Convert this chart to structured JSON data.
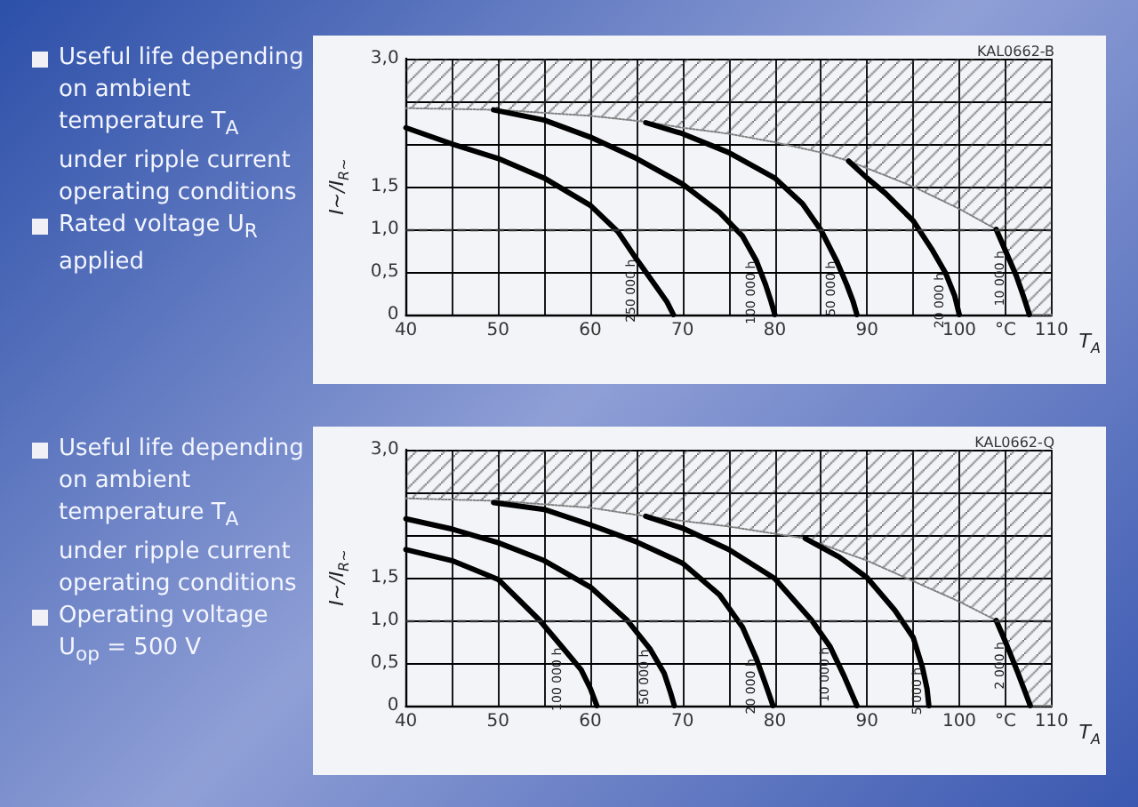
{
  "chart_data": [
    {
      "type": "line",
      "subtitle": "KAL0662-B",
      "xlabel": "T$_{A}$",
      "ylabel": "I~/I$_{R~}$",
      "annotations": [
        "Useful life depending on ambient temperature T$_{A}$ under ripple current operating conditions",
        "Rated voltage U$_{R}$ applied"
      ],
      "xlim": [
        40,
        110
      ],
      "xticks": [
        40,
        {
          "value": 45,
          "label": null
        },
        50,
        {
          "value": 55,
          "label": null
        },
        60,
        {
          "value": 65,
          "label": null
        },
        70,
        {
          "value": 75,
          "label": null
        },
        80,
        {
          "value": 85,
          "label": null
        },
        90,
        {
          "value": 95,
          "label": null
        },
        100,
        {
          "value": 105,
          "label": "°C"
        },
        110
      ],
      "ylim": [
        0,
        3
      ],
      "yticks": [
        0,
        {
          "value": 0.5,
          "label": "0,5"
        },
        {
          "value": 1,
          "label": "1,0"
        },
        {
          "value": 1.5,
          "label": "1,5"
        },
        {
          "value": 2,
          "label": null
        },
        {
          "value": 2.5,
          "label": null
        },
        {
          "value": 3,
          "label": "3,0"
        }
      ],
      "grid": true,
      "marker": "none",
      "line_style": "solid",
      "ref_lines": [
        {
          "axis": "y",
          "value": 1,
          "color": "#333333",
          "line_style": "dashed"
        }
      ],
      "series": [
        {
          "color": "#808080",
          "line_style": "dotted",
          "x": [
            40,
            50,
            60,
            66,
            70,
            75,
            80,
            85,
            88,
            92,
            95,
            100,
            104,
            105,
            106.2,
            107,
            107.6,
            110
          ],
          "values": [
            2.42,
            2.4,
            2.33,
            2.26,
            2.19,
            2.12,
            2.02,
            1.9,
            1.8,
            1.63,
            1.5,
            1.24,
            1.0,
            0.75,
            0.45,
            0.2,
            0,
            0
          ],
          "lower": [
            2.42,
            2.4,
            2.33,
            2.26,
            2.19,
            2.12,
            2.02,
            1.9,
            1.8,
            1.63,
            1.5,
            1.24,
            1.0,
            0.75,
            0.45,
            0.2,
            0,
            0
          ],
          "upper": [
            3,
            3,
            3,
            3,
            3,
            3,
            3,
            3,
            3,
            3,
            3,
            3,
            3,
            3,
            3,
            3,
            3,
            3
          ]
        },
        {
          "name": "250 000 h",
          "color": "#000000",
          "x": [
            40,
            45,
            50,
            55,
            60,
            63,
            65,
            67,
            68.3,
            69
          ],
          "values": [
            2.19,
            2.0,
            1.83,
            1.6,
            1.28,
            0.97,
            0.65,
            0.35,
            0.15,
            0
          ]
        },
        {
          "name": "100 000 h",
          "color": "#000000",
          "x": [
            49.5,
            55,
            60,
            65,
            70,
            74,
            76.5,
            78,
            79,
            79.6,
            80
          ],
          "values": [
            2.4,
            2.28,
            2.08,
            1.83,
            1.53,
            1.2,
            0.92,
            0.63,
            0.35,
            0.15,
            0
          ]
        },
        {
          "name": "50 000 h",
          "color": "#000000",
          "x": [
            66,
            70,
            75,
            80,
            83,
            85,
            86.7,
            87.8,
            88.5,
            88.9
          ],
          "values": [
            2.25,
            2.12,
            1.9,
            1.6,
            1.3,
            0.99,
            0.63,
            0.35,
            0.15,
            0
          ]
        },
        {
          "name": "20 000 h",
          "color": "#000000",
          "x": [
            88,
            90,
            92,
            95,
            97,
            98.5,
            99.5,
            100
          ],
          "values": [
            1.8,
            1.6,
            1.42,
            1.1,
            0.77,
            0.49,
            0.22,
            0
          ]
        },
        {
          "name": "10 000 h",
          "color": "#000000",
          "x": [
            104,
            105,
            106.2,
            107,
            107.6
          ],
          "values": [
            1.0,
            0.75,
            0.45,
            0.2,
            0
          ]
        }
      ]
    },
    {
      "type": "line",
      "subtitle": "KAL0662-Q",
      "xlabel": "T$_{A}$",
      "ylabel": "I~/I$_{R~}$",
      "annotations": [
        "Useful life depending on ambient temperature T$_{A}$ under ripple current operating conditions",
        "Operating voltage U$_{op}$ = 500 V"
      ],
      "xlim": [
        40,
        110
      ],
      "xticks": [
        40,
        {
          "value": 45,
          "label": null
        },
        50,
        {
          "value": 55,
          "label": null
        },
        60,
        {
          "value": 65,
          "label": null
        },
        70,
        {
          "value": 75,
          "label": null
        },
        80,
        {
          "value": 85,
          "label": null
        },
        90,
        {
          "value": 95,
          "label": null
        },
        100,
        {
          "value": 105,
          "label": "°C"
        },
        110
      ],
      "ylim": [
        0,
        3
      ],
      "yticks": [
        0,
        {
          "value": 0.5,
          "label": "0,5"
        },
        {
          "value": 1,
          "label": "1,0"
        },
        {
          "value": 1.5,
          "label": "1,5"
        },
        {
          "value": 2,
          "label": null
        },
        {
          "value": 2.5,
          "label": null
        },
        {
          "value": 3,
          "label": "3,0"
        }
      ],
      "grid": true,
      "marker": "none",
      "line_style": "solid",
      "ref_lines": [
        {
          "axis": "y",
          "value": 1,
          "color": "#333333",
          "line_style": "dashed"
        }
      ],
      "series": [
        {
          "color": "#808080",
          "line_style": "dotted",
          "x": [
            40,
            50,
            60,
            66,
            75,
            83.3,
            90,
            95,
            100,
            104,
            105,
            106.3,
            107,
            107.7,
            110
          ],
          "values": [
            2.43,
            2.4,
            2.32,
            2.22,
            2.1,
            1.96,
            1.7,
            1.46,
            1.22,
            1.0,
            0.75,
            0.4,
            0.2,
            0,
            0
          ],
          "lower": [
            2.43,
            2.4,
            2.32,
            2.22,
            2.1,
            1.96,
            1.7,
            1.46,
            1.22,
            1.0,
            0.75,
            0.4,
            0.2,
            0,
            0
          ],
          "upper": [
            3,
            3,
            3,
            3,
            3,
            3,
            3,
            3,
            3,
            3,
            3,
            3,
            3,
            3,
            3
          ]
        },
        {
          "name": "100 000 h",
          "color": "#000000",
          "x": [
            40,
            45,
            50,
            54.5,
            57,
            59,
            60,
            60.7
          ],
          "values": [
            1.83,
            1.7,
            1.48,
            1.0,
            0.68,
            0.42,
            0.2,
            0
          ]
        },
        {
          "name": "50 000 h",
          "color": "#000000",
          "x": [
            40,
            45,
            50,
            55,
            60,
            64,
            66.5,
            68,
            68.7,
            69.1
          ],
          "values": [
            2.19,
            2.07,
            1.91,
            1.7,
            1.39,
            1.0,
            0.66,
            0.38,
            0.15,
            0
          ]
        },
        {
          "name": "20 000 h",
          "color": "#000000",
          "x": [
            49.5,
            55,
            60,
            65,
            70,
            74,
            76.5,
            78,
            79,
            79.8
          ],
          "values": [
            2.38,
            2.3,
            2.12,
            1.92,
            1.67,
            1.3,
            0.92,
            0.55,
            0.25,
            0
          ]
        },
        {
          "name": "10 000 h",
          "color": "#000000",
          "x": [
            66,
            70,
            75,
            80,
            84,
            86,
            87.5,
            88.3,
            88.9
          ],
          "values": [
            2.22,
            2.08,
            1.83,
            1.49,
            1.0,
            0.69,
            0.35,
            0.15,
            0
          ]
        },
        {
          "name": "5 000 h",
          "color": "#000000",
          "x": [
            83.3,
            87,
            90,
            93,
            95,
            96,
            96.5,
            96.7
          ],
          "values": [
            1.96,
            1.74,
            1.5,
            1.12,
            0.8,
            0.45,
            0.2,
            0
          ]
        },
        {
          "name": "2 000 h",
          "color": "#000000",
          "x": [
            104,
            105,
            106.3,
            107,
            107.7
          ],
          "values": [
            1.0,
            0.75,
            0.4,
            0.2,
            0
          ]
        }
      ]
    }
  ]
}
